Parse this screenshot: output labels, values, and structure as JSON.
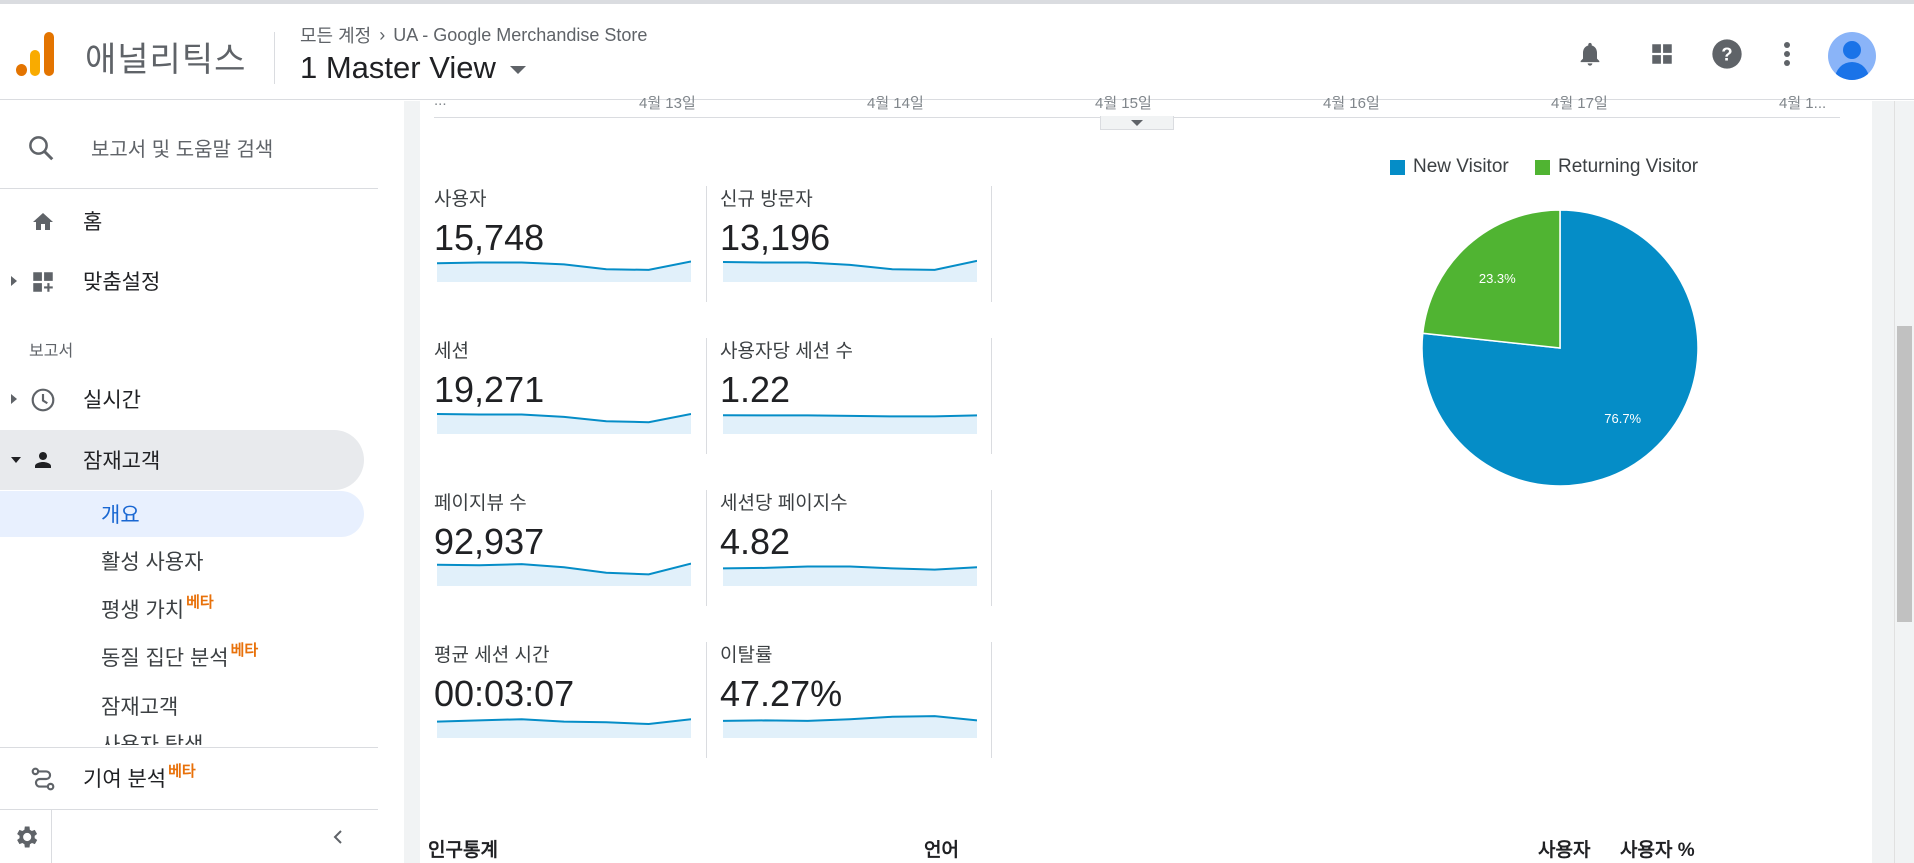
{
  "header": {
    "app_name": "애널리틱스",
    "breadcrumb_root": "모든 계정",
    "breadcrumb_property": "UA - Google Merchandise Store",
    "view_name": "1 Master View"
  },
  "sidebar": {
    "search_label": "보고서 및 도움말 검색",
    "home": "홈",
    "customization": "맞춤설정",
    "reports_section": "보고서",
    "realtime": "실시간",
    "audience": "잠재고객",
    "audience_sub": {
      "overview": "개요",
      "active_users": "활성 사용자",
      "lifetime_value": "평생 가치",
      "cohort": "동질 집단 분석",
      "audiences": "잠재고객",
      "cut_off": "사용자 탐색"
    },
    "beta": "베타",
    "attribution": "기여 분석"
  },
  "timeline": {
    "ticks": [
      "...",
      "4월 13일",
      "4월 14일",
      "4월 15일",
      "4월 16일",
      "4월 17일",
      "4월 1..."
    ]
  },
  "metrics": [
    {
      "label": "사용자",
      "value": "15,748",
      "trend": [
        0.55,
        0.52,
        0.52,
        0.6,
        0.8,
        0.83,
        0.48
      ]
    },
    {
      "label": "신규 방문자",
      "value": "13,196",
      "trend": [
        0.5,
        0.52,
        0.52,
        0.62,
        0.8,
        0.83,
        0.45
      ]
    },
    {
      "label": "세션",
      "value": "19,271",
      "trend": [
        0.5,
        0.52,
        0.52,
        0.62,
        0.8,
        0.84,
        0.5
      ]
    },
    {
      "label": "사용자당 세션 수",
      "value": "1.22",
      "trend": [
        0.55,
        0.56,
        0.56,
        0.58,
        0.6,
        0.6,
        0.56
      ]
    },
    {
      "label": "페이지뷰 수",
      "value": "92,937",
      "trend": [
        0.45,
        0.47,
        0.42,
        0.55,
        0.78,
        0.85,
        0.4
      ]
    },
    {
      "label": "세션당 페이지수",
      "value": "4.82",
      "trend": [
        0.6,
        0.58,
        0.52,
        0.52,
        0.6,
        0.65,
        0.55
      ]
    },
    {
      "label": "평균 세션 시간",
      "value": "00:03:07",
      "trend": [
        0.65,
        0.6,
        0.55,
        0.65,
        0.68,
        0.75,
        0.55
      ]
    },
    {
      "label": "이탈률",
      "value": "47.27%",
      "trend": [
        0.62,
        0.6,
        0.62,
        0.55,
        0.45,
        0.42,
        0.6
      ]
    }
  ],
  "chart_data": {
    "type": "pie",
    "categories": [
      "New Visitor",
      "Returning Visitor"
    ],
    "values": [
      76.7,
      23.3
    ],
    "labels": [
      "76.7%",
      "23.3%"
    ],
    "colors": [
      "#058dc7",
      "#50b432"
    ],
    "legend": "top"
  },
  "table_headers": {
    "demographics": "인구통계",
    "language": "언어",
    "users": "사용자",
    "users_pct": "사용자 %"
  }
}
